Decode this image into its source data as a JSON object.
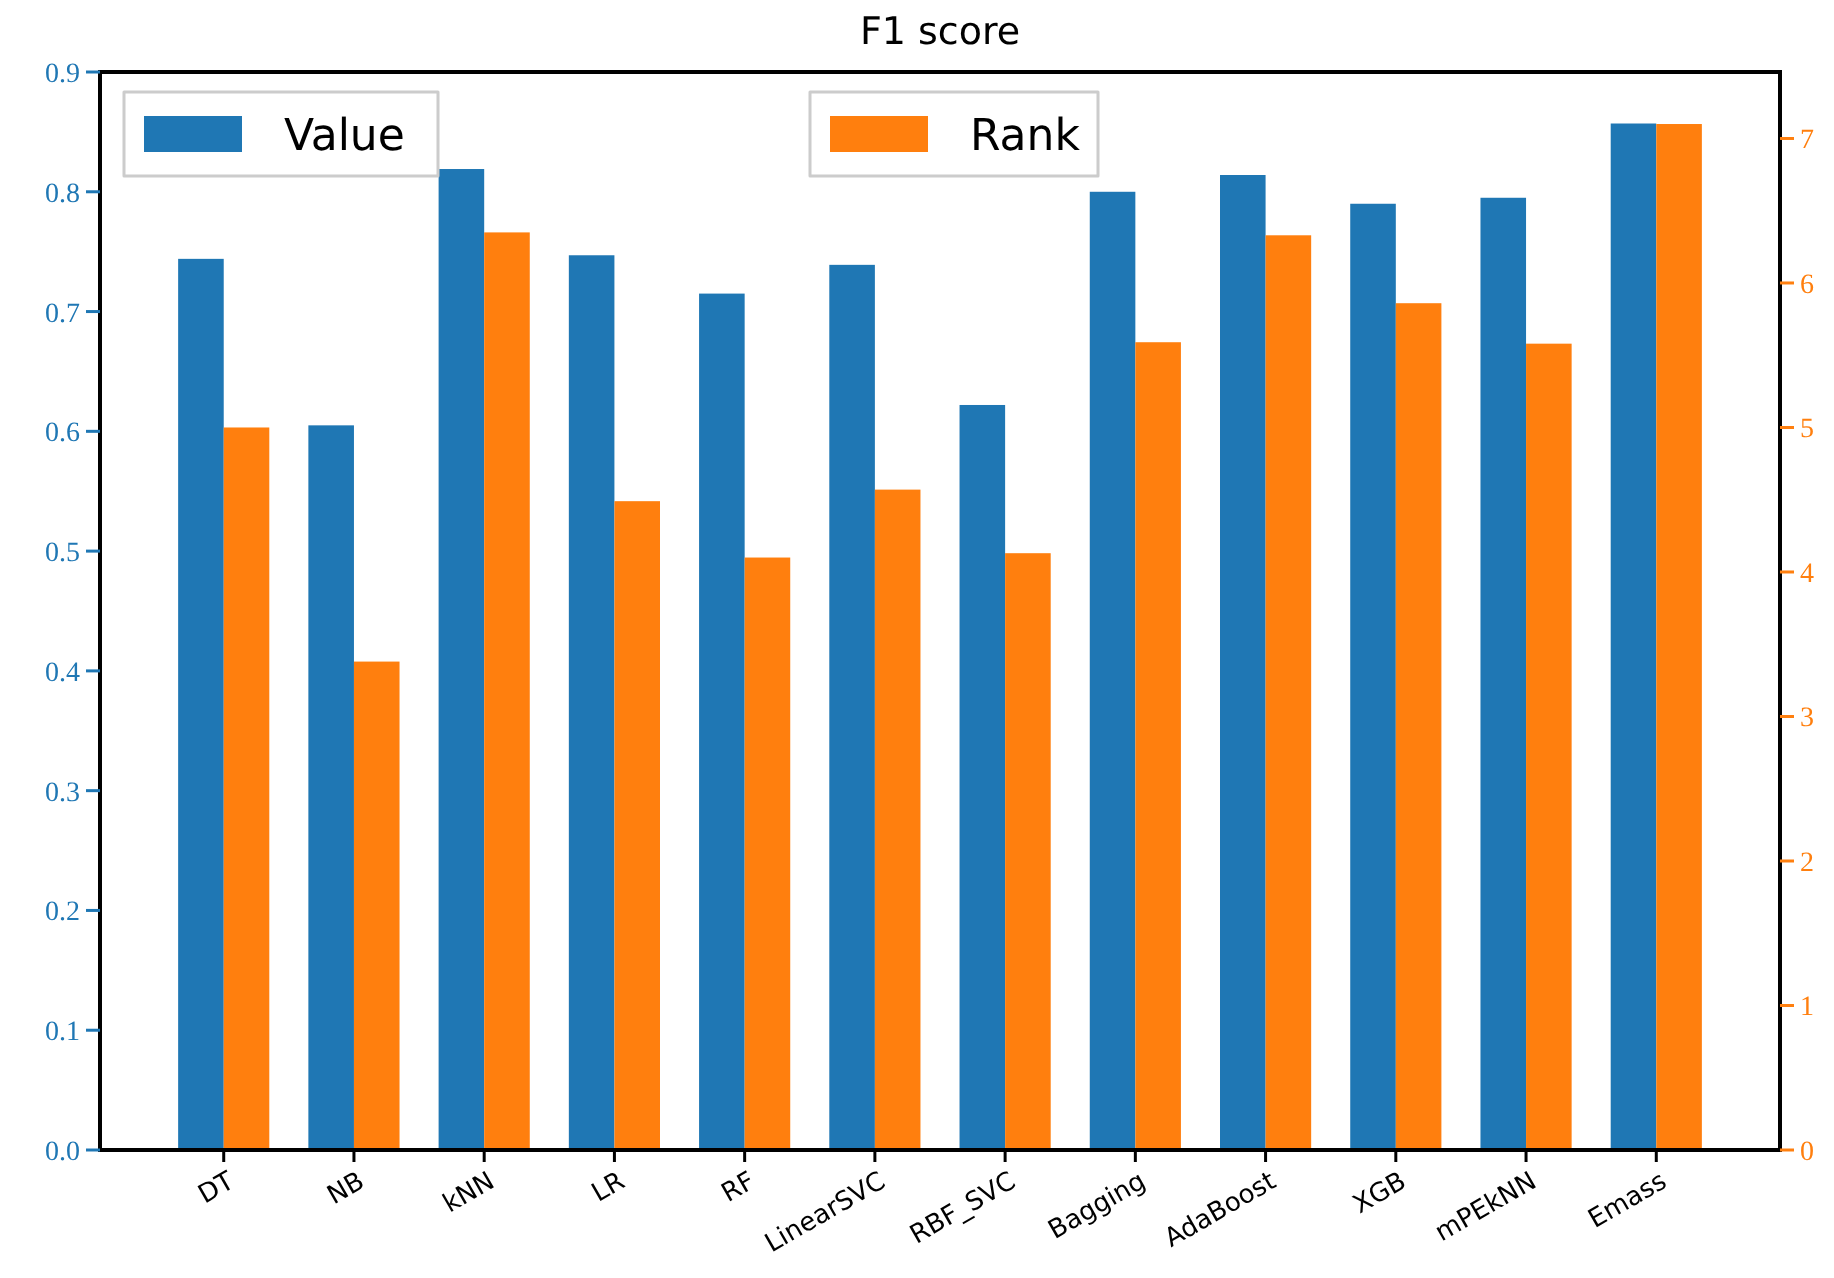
{
  "chart_data": {
    "type": "bar",
    "title": "F1 score",
    "categories": [
      "DT",
      "NB",
      "kNN",
      "LR",
      "RF",
      "LinearSVC",
      "RBF_SVC",
      "Bagging",
      "AdaBoost",
      "XGB",
      "mPEkNN",
      "Emass"
    ],
    "series": [
      {
        "name": "Value",
        "color": "#1f77b4",
        "values": [
          0.744,
          0.605,
          0.819,
          0.747,
          0.715,
          0.739,
          0.622,
          0.8,
          0.814,
          0.79,
          0.795,
          0.857
        ]
      },
      {
        "name": "Rank",
        "color": "#ff7f0e",
        "axis": "y2",
        "values": [
          5.0,
          3.38,
          6.35,
          4.49,
          4.1,
          4.57,
          4.13,
          5.59,
          6.33,
          5.86,
          5.58,
          7.1
        ]
      }
    ],
    "ylim": [
      0,
      0.9
    ],
    "yticks": [
      {
        "value": 0,
        "label": "0.0"
      },
      0.1,
      0.2,
      0.3,
      0.4,
      0.5,
      0.6,
      0.7,
      0.8,
      0.9
    ],
    "y2lim": [
      0,
      7.46
    ],
    "y2ticks": [
      0,
      1,
      2,
      3,
      4,
      5,
      6,
      7
    ],
    "grid": false,
    "legend": "top"
  }
}
